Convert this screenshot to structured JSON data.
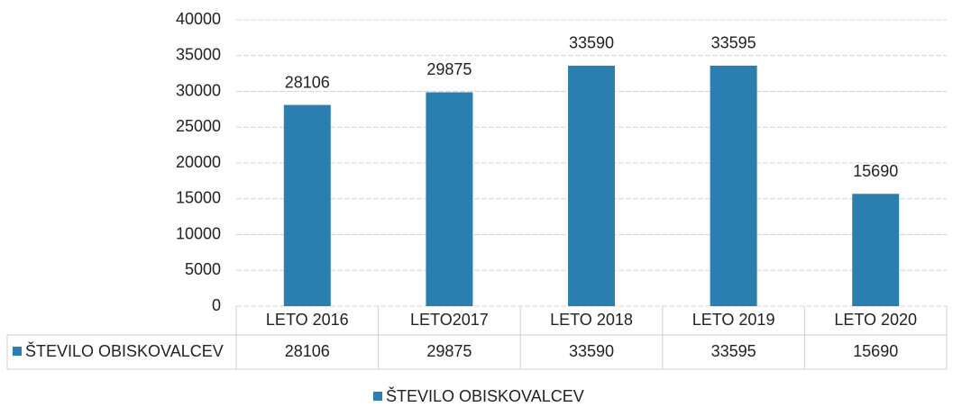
{
  "chart_data": {
    "type": "bar",
    "categories": [
      "LETO 2016",
      "LETO2017",
      "LETO 2018",
      "LETO 2019",
      "LETO 2020"
    ],
    "series": [
      {
        "name": "ŠTEVILO OBISKOVALCEV",
        "color": "#2a7fb0",
        "values": [
          28106,
          29875,
          33590,
          33595,
          15690
        ]
      }
    ],
    "ylim": [
      0,
      40000
    ],
    "yticks": [
      0,
      5000,
      10000,
      15000,
      20000,
      25000,
      30000,
      35000,
      40000
    ],
    "grid": true,
    "data_table": true,
    "legend": "bottom"
  }
}
